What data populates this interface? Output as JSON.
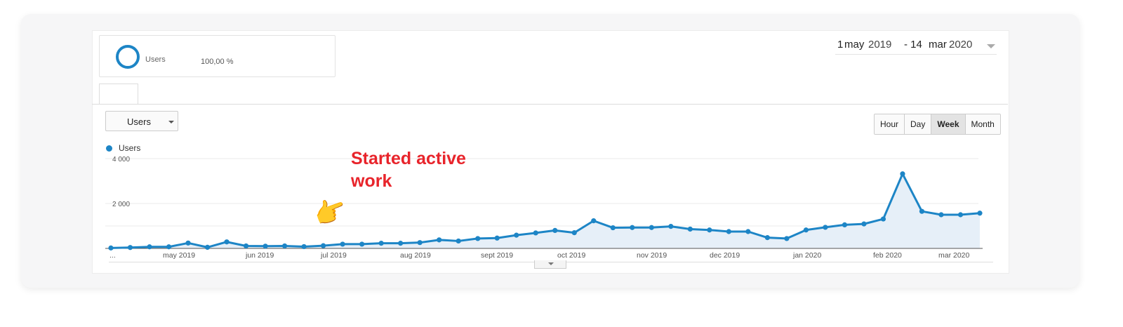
{
  "segment": {
    "label": "Users",
    "percent": "100,00 %"
  },
  "date_range": {
    "start_day": "1",
    "start_month": "may",
    "start_year": "2019",
    "separator": "- 14",
    "end_month": "mar",
    "end_year": "2020"
  },
  "metric_select": {
    "value": "Users"
  },
  "granularity": {
    "buttons": [
      "Hour",
      "Day",
      "Week",
      "Month"
    ],
    "active": "Week"
  },
  "annotation": {
    "text_line1": "Started active",
    "text_line2": "work",
    "color": "#e8242b"
  },
  "colors": {
    "series": "#1d85c6",
    "area": "#e6eff8",
    "grid": "#ebebeb",
    "annotation": "#e8242b"
  },
  "icons": {
    "segment": "ring-icon",
    "pointer": "pointing-hand-emoji",
    "dropdown": "chevron-down-icon"
  },
  "chart_data": {
    "type": "line",
    "title": "",
    "xlabel": "",
    "ylabel": "",
    "legend": [
      "Users"
    ],
    "ylim": [
      0,
      4000
    ],
    "y_ticks": [
      "4 000",
      "2 000"
    ],
    "x_tick_labels": [
      "...",
      "may 2019",
      "jun 2019",
      "jul 2019",
      "aug 2019",
      "sept 2019",
      "oct 2019",
      "nov 2019",
      "dec 2019",
      "jan 2020",
      "feb 2020",
      "mar 2020"
    ],
    "series": [
      {
        "name": "Users",
        "values": [
          20,
          40,
          70,
          70,
          240,
          50,
          290,
          110,
          100,
          110,
          80,
          120,
          190,
          190,
          230,
          230,
          260,
          380,
          330,
          440,
          460,
          590,
          690,
          800,
          700,
          1230,
          920,
          930,
          930,
          980,
          860,
          820,
          750,
          750,
          480,
          440,
          820,
          940,
          1050,
          1090,
          1310,
          3320,
          1650,
          1500,
          1500,
          1570
        ]
      }
    ]
  }
}
